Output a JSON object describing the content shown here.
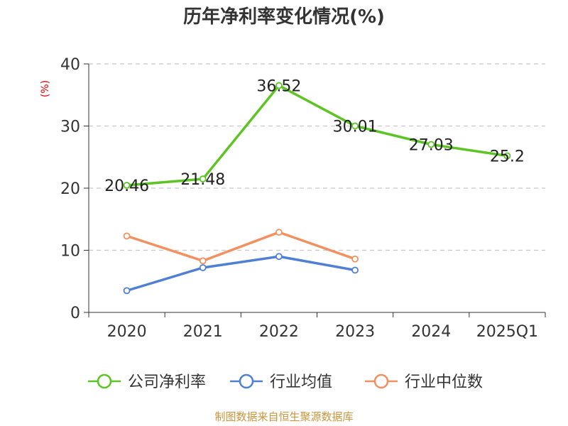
{
  "chart_data": {
    "type": "line",
    "title": "历年净利率变化情况(%)",
    "ylabel": "(%)",
    "categories": [
      "2020",
      "2021",
      "2022",
      "2023",
      "2024",
      "2025Q1"
    ],
    "ylim": [
      0,
      40
    ],
    "yticks": [
      0,
      10,
      20,
      30,
      40
    ],
    "grid": true,
    "legend_position": "bottom",
    "series": [
      {
        "name": "公司净利率",
        "color": "#5cc423",
        "values": [
          20.46,
          21.48,
          36.52,
          30.01,
          27.03,
          25.2
        ],
        "labels": [
          "20.46",
          "21.48",
          "36.52",
          "30.01",
          "27.03",
          "25.2"
        ]
      },
      {
        "name": "行业均值",
        "color": "#4f80d4",
        "values": [
          3.5,
          7.2,
          9.0,
          6.8,
          null,
          null
        ]
      },
      {
        "name": "行业中位数",
        "color": "#f29060",
        "values": [
          12.3,
          8.3,
          12.9,
          8.6,
          null,
          null
        ]
      }
    ]
  },
  "source": "制图数据来自恒生聚源数据库"
}
